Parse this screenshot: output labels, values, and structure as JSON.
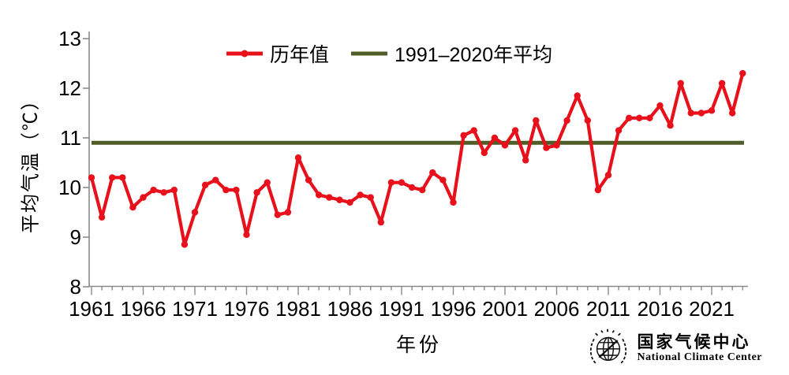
{
  "colors": {
    "series_red": "#e8101a",
    "mean_green": "#4f5d28",
    "axis_gray": "#8a8a8a",
    "text_black": "#000000",
    "background": "#ffffff"
  },
  "legend": {
    "items": [
      {
        "label": "历年值",
        "color": "#e8101a",
        "swatch": "line-with-dot"
      },
      {
        "label": "1991–2020年平均",
        "color": "#4f5d28",
        "swatch": "line"
      }
    ]
  },
  "footer": {
    "org_cn": "国家气候中心",
    "org_en": "National Climate Center",
    "logo_icon": "globe-wreath-emblem"
  },
  "chart_data": {
    "type": "line",
    "title": "",
    "xlabel": "年份",
    "ylabel": "平均气温（℃）",
    "x_start": 1961,
    "x_end": 2024,
    "x_ticks": [
      1961,
      1966,
      1971,
      1976,
      1981,
      1986,
      1991,
      1996,
      2001,
      2006,
      2011,
      2016,
      2021
    ],
    "y_ticks": [
      8,
      9,
      10,
      11,
      12,
      13
    ],
    "ylim": [
      8,
      13
    ],
    "grid": false,
    "legend_position": "top-center",
    "series": [
      {
        "name": "历年值",
        "type": "line",
        "marker": "circle",
        "color": "#e8101a",
        "values": [
          10.2,
          9.4,
          10.2,
          10.2,
          9.6,
          9.8,
          9.95,
          9.9,
          9.95,
          8.85,
          9.5,
          10.05,
          10.15,
          9.95,
          9.95,
          9.05,
          9.9,
          10.1,
          9.45,
          9.5,
          10.6,
          10.15,
          9.85,
          9.8,
          9.75,
          9.7,
          9.85,
          9.8,
          9.3,
          10.1,
          10.1,
          10.0,
          9.95,
          10.3,
          10.15,
          9.7,
          11.05,
          11.15,
          10.7,
          11.0,
          10.85,
          11.15,
          10.55,
          11.35,
          10.8,
          10.85,
          11.35,
          11.85,
          11.35,
          9.95,
          10.25,
          11.15,
          11.4,
          11.4,
          11.4,
          11.65,
          11.25,
          12.1,
          11.5,
          11.5,
          11.55,
          12.1,
          11.5,
          12.3
        ]
      },
      {
        "name": "1991–2020年平均",
        "type": "hline",
        "color": "#4f5d28",
        "value": 10.9
      }
    ]
  }
}
